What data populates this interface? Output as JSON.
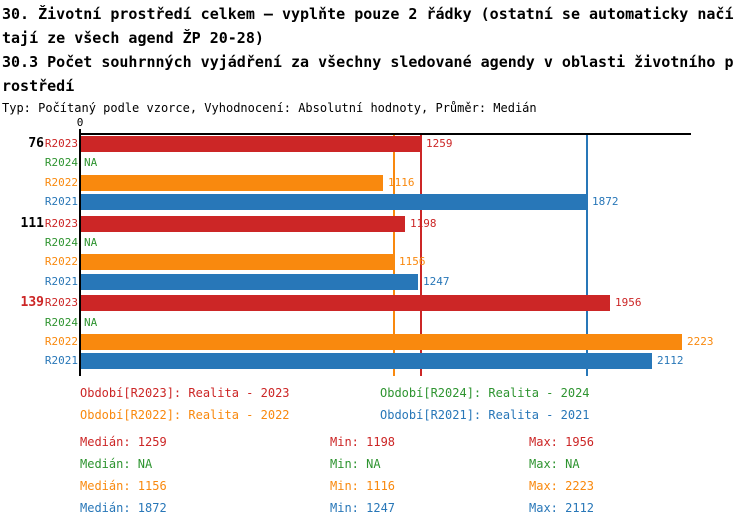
{
  "header": {
    "title_lines": [
      "30. Životní prostředí celkem – vyplňte pouze 2 řádky (ostatní se automaticky načí",
      "tají ze všech agend ŽP 20-28)",
      "30.3 Počet souhrnných vyjádření za všechny sledované agendy v oblasti životního p",
      "rostředí"
    ],
    "meta_line": "Typ: Počítaný podle vzorce, Vyhodnocení: Absolutní hodnoty, Průměr: Medián"
  },
  "colors": {
    "R2023": "#cc2626",
    "R2024": "#2e9430",
    "R2022": "#f9890e",
    "R2021": "#2877b8",
    "axis": "#000000",
    "group_label_default": "#000000",
    "group_label_alert": "#cc2626"
  },
  "chart_data": {
    "type": "bar",
    "orientation": "horizontal",
    "xlim": [
      0,
      2256
    ],
    "zero_label": "0",
    "series_order": [
      "R2023",
      "R2024",
      "R2022",
      "R2021"
    ],
    "groups": [
      {
        "label": "76",
        "label_color": "#000000",
        "bars": [
          {
            "series": "R2023",
            "value": 1259,
            "display": "1259"
          },
          {
            "series": "R2024",
            "value": null,
            "display": "NA"
          },
          {
            "series": "R2022",
            "value": 1116,
            "display": "1116"
          },
          {
            "series": "R2021",
            "value": 1872,
            "display": "1872"
          }
        ]
      },
      {
        "label": "111",
        "label_color": "#000000",
        "bars": [
          {
            "series": "R2023",
            "value": 1198,
            "display": "1198"
          },
          {
            "series": "R2024",
            "value": null,
            "display": "NA"
          },
          {
            "series": "R2022",
            "value": 1156,
            "display": "1156"
          },
          {
            "series": "R2021",
            "value": 1247,
            "display": "1247"
          }
        ]
      },
      {
        "label": "139",
        "label_color": "#cc2626",
        "bars": [
          {
            "series": "R2023",
            "value": 1956,
            "display": "1956"
          },
          {
            "series": "R2024",
            "value": null,
            "display": "NA"
          },
          {
            "series": "R2022",
            "value": 2223,
            "display": "2223"
          },
          {
            "series": "R2021",
            "value": 2112,
            "display": "2112"
          }
        ]
      }
    ],
    "median_lines": [
      {
        "series": "R2022",
        "value": 1156
      },
      {
        "series": "R2023",
        "value": 1259
      },
      {
        "series": "R2021",
        "value": 1872
      }
    ]
  },
  "legend": {
    "items": [
      {
        "series": "R2023",
        "label": "Období[R2023]: Realita - 2023"
      },
      {
        "series": "R2024",
        "label": "Období[R2024]: Realita - 2024"
      },
      {
        "series": "R2022",
        "label": "Období[R2022]: Realita - 2022"
      },
      {
        "series": "R2021",
        "label": "Období[R2021]: Realita - 2021"
      }
    ]
  },
  "stats": {
    "rows": [
      {
        "series": "R2023",
        "median": "Medián: 1259",
        "min": "Min: 1198",
        "max": "Max: 1956"
      },
      {
        "series": "R2024",
        "median": "Medián: NA",
        "min": "Min: NA",
        "max": "Max: NA"
      },
      {
        "series": "R2022",
        "median": "Medián: 1156",
        "min": "Min: 1116",
        "max": "Max: 2223"
      },
      {
        "series": "R2021",
        "median": "Medián: 1872",
        "min": "Min: 1247",
        "max": "Max: 2112"
      }
    ]
  }
}
